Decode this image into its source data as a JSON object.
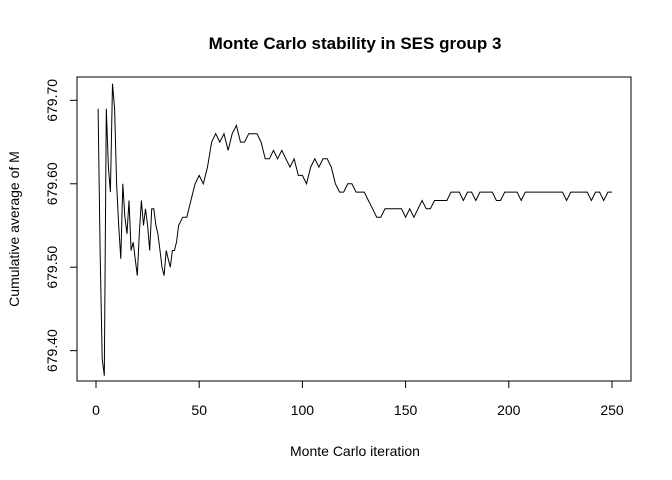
{
  "chart_data": {
    "type": "line",
    "title": "Monte Carlo stability in SES group 3",
    "xlabel": "Monte Carlo iteration",
    "ylabel": "Cumulative average of M",
    "xlim": [
      0,
      250
    ],
    "ylim": [
      679.35,
      679.73
    ],
    "xticks": [
      0,
      50,
      100,
      150,
      200,
      250
    ],
    "xtick_labels": [
      "0",
      "50",
      "100",
      "150",
      "200",
      "250"
    ],
    "yticks": [
      679.4,
      679.5,
      679.6,
      679.7
    ],
    "ytick_labels": [
      "679.40",
      "679.50",
      "679.60",
      "679.70"
    ],
    "grid": false,
    "line_color": "#000000",
    "series": [
      {
        "x": [
          1,
          2,
          3,
          4,
          5,
          6,
          7,
          8,
          9,
          10,
          11,
          12,
          13,
          14,
          15,
          16,
          17,
          18,
          19,
          20,
          21,
          22,
          23,
          24,
          25,
          26,
          27,
          28,
          29,
          30,
          31,
          32,
          33,
          34,
          35,
          36,
          37,
          38,
          39,
          40,
          42,
          44,
          46,
          48,
          50,
          52,
          54,
          56,
          58,
          60,
          62,
          64,
          66,
          68,
          70,
          72,
          74,
          76,
          78,
          80,
          82,
          84,
          86,
          88,
          90,
          92,
          94,
          96,
          98,
          100,
          102,
          104,
          106,
          108,
          110,
          112,
          114,
          116,
          118,
          120,
          122,
          124,
          126,
          128,
          130,
          132,
          134,
          136,
          138,
          140,
          142,
          144,
          146,
          148,
          150,
          152,
          154,
          156,
          158,
          160,
          162,
          164,
          166,
          168,
          170,
          172,
          174,
          176,
          178,
          180,
          182,
          184,
          186,
          188,
          190,
          192,
          194,
          196,
          198,
          200,
          202,
          204,
          206,
          208,
          210,
          212,
          214,
          216,
          218,
          220,
          222,
          224,
          226,
          228,
          230,
          232,
          234,
          236,
          238,
          240,
          242,
          244,
          246,
          248,
          250
        ],
        "y": [
          679.69,
          679.52,
          679.39,
          679.37,
          679.69,
          679.62,
          679.59,
          679.72,
          679.69,
          679.6,
          679.55,
          679.51,
          679.6,
          679.56,
          679.54,
          679.58,
          679.52,
          679.53,
          679.51,
          679.49,
          679.54,
          679.58,
          679.55,
          679.57,
          679.55,
          679.52,
          679.57,
          679.57,
          679.55,
          679.54,
          679.52,
          679.5,
          679.49,
          679.52,
          679.51,
          679.5,
          679.52,
          679.52,
          679.53,
          679.55,
          679.56,
          679.56,
          679.58,
          679.6,
          679.61,
          679.6,
          679.62,
          679.65,
          679.66,
          679.65,
          679.66,
          679.64,
          679.66,
          679.67,
          679.65,
          679.65,
          679.66,
          679.66,
          679.66,
          679.65,
          679.63,
          679.63,
          679.64,
          679.63,
          679.64,
          679.63,
          679.62,
          679.63,
          679.61,
          679.61,
          679.6,
          679.62,
          679.63,
          679.62,
          679.63,
          679.63,
          679.62,
          679.6,
          679.59,
          679.59,
          679.6,
          679.6,
          679.59,
          679.59,
          679.59,
          679.58,
          679.57,
          679.56,
          679.56,
          679.57,
          679.57,
          679.57,
          679.57,
          679.57,
          679.56,
          679.57,
          679.56,
          679.57,
          679.58,
          679.57,
          679.57,
          679.58,
          679.58,
          679.58,
          679.58,
          679.59,
          679.59,
          679.59,
          679.58,
          679.59,
          679.59,
          679.58,
          679.59,
          679.59,
          679.59,
          679.59,
          679.58,
          679.58,
          679.59,
          679.59,
          679.59,
          679.59,
          679.58,
          679.59,
          679.59,
          679.59,
          679.59,
          679.59,
          679.59,
          679.59,
          679.59,
          679.59,
          679.59,
          679.58,
          679.59,
          679.59,
          679.59,
          679.59,
          679.59,
          679.58,
          679.59,
          679.59,
          679.58,
          679.59,
          679.59
        ]
      }
    ]
  }
}
